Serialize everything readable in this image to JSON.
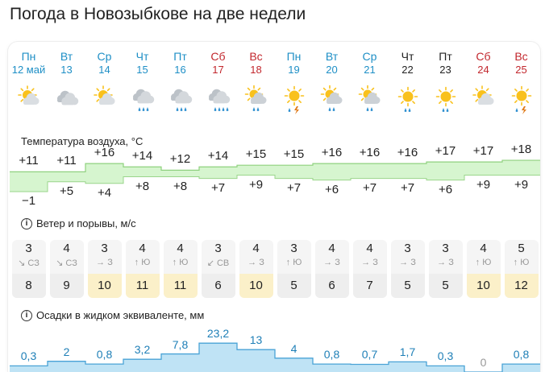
{
  "page": {
    "title": "Погода в Новозыбкове на две недели"
  },
  "days": [
    {
      "dow": "Пн",
      "date": "12 май",
      "weekend": false,
      "icon": "partly-cloudy-sun-icon"
    },
    {
      "dow": "Вт",
      "date": "13",
      "weekend": false,
      "icon": "cloudy-icon"
    },
    {
      "dow": "Ср",
      "date": "14",
      "weekend": false,
      "icon": "partly-cloudy-sun-icon"
    },
    {
      "dow": "Чт",
      "date": "15",
      "weekend": false,
      "icon": "cloudy-rain-icon"
    },
    {
      "dow": "Пт",
      "date": "16",
      "weekend": false,
      "icon": "cloudy-rain-icon"
    },
    {
      "dow": "Сб",
      "date": "17",
      "weekend": true,
      "icon": "cloudy-heavy-rain-icon"
    },
    {
      "dow": "Вс",
      "date": "18",
      "weekend": true,
      "icon": "partly-cloudy-rain-icon"
    },
    {
      "dow": "Пн",
      "date": "19",
      "weekend": false,
      "icon": "sun-rain-thunder-icon"
    },
    {
      "dow": "Вт",
      "date": "20",
      "weekend": false,
      "icon": "partly-cloudy-rain-icon"
    },
    {
      "dow": "Ср",
      "date": "21",
      "weekend": false,
      "icon": "partly-cloudy-rain-icon"
    },
    {
      "dow": "Чт",
      "date": "22",
      "weekend": false,
      "icon": "sun-rain-icon"
    },
    {
      "dow": "Пт",
      "date": "23",
      "weekend": false,
      "icon": "sun-rain-icon"
    },
    {
      "dow": "Сб",
      "date": "24",
      "weekend": true,
      "icon": "partly-cloudy-sun-icon"
    },
    {
      "dow": "Вс",
      "date": "25",
      "weekend": true,
      "icon": "sun-rain-thunder-icon"
    }
  ],
  "temperature": {
    "label": "Температура воздуха, °C",
    "highs": [
      "+11",
      "+11",
      "+16",
      "+14",
      "+12",
      "+14",
      "+15",
      "+15",
      "+16",
      "+16",
      "+16",
      "+17",
      "+17",
      "+18"
    ],
    "lows": [
      "−1",
      "+5",
      "+4",
      "+8",
      "+8",
      "+7",
      "+9",
      "+7",
      "+6",
      "+7",
      "+7",
      "+6",
      "+9",
      "+9"
    ]
  },
  "wind": {
    "label": "Ветер и порывы, м/с",
    "info_icon": "i",
    "speeds": [
      "3",
      "4",
      "3",
      "4",
      "4",
      "3",
      "4",
      "3",
      "4",
      "4",
      "3",
      "3",
      "4",
      "5"
    ],
    "directions": [
      "↘ СЗ",
      "↘ СЗ",
      "→ З",
      "↑ Ю",
      "↑ Ю",
      "↙ СВ",
      "→ З",
      "↑ Ю",
      "→ З",
      "→ З",
      "→ З",
      "→ З",
      "↑ Ю",
      "↑ Ю"
    ],
    "gusts": [
      "8",
      "9",
      "10",
      "11",
      "11",
      "6",
      "10",
      "5",
      "6",
      "7",
      "5",
      "5",
      "10",
      "12"
    ]
  },
  "precipitation": {
    "label": "Осадки в жидком эквиваленте, мм",
    "info_icon": "i",
    "values": [
      "0,3",
      "2",
      "0,8",
      "3,2",
      "7,8",
      "23,2",
      "13",
      "4",
      "0,8",
      "0,7",
      "1,7",
      "0,3",
      "0",
      "0,8"
    ]
  },
  "colors": {
    "weekday": "#1e8fc6",
    "weekend": "#c2272d",
    "neutral": "#222222",
    "gust_strong": "#fbf0c9",
    "gust_calm": "#eeeeee",
    "precip_fill": "#bfe3f5",
    "precip_line": "#4aa3d6"
  }
}
